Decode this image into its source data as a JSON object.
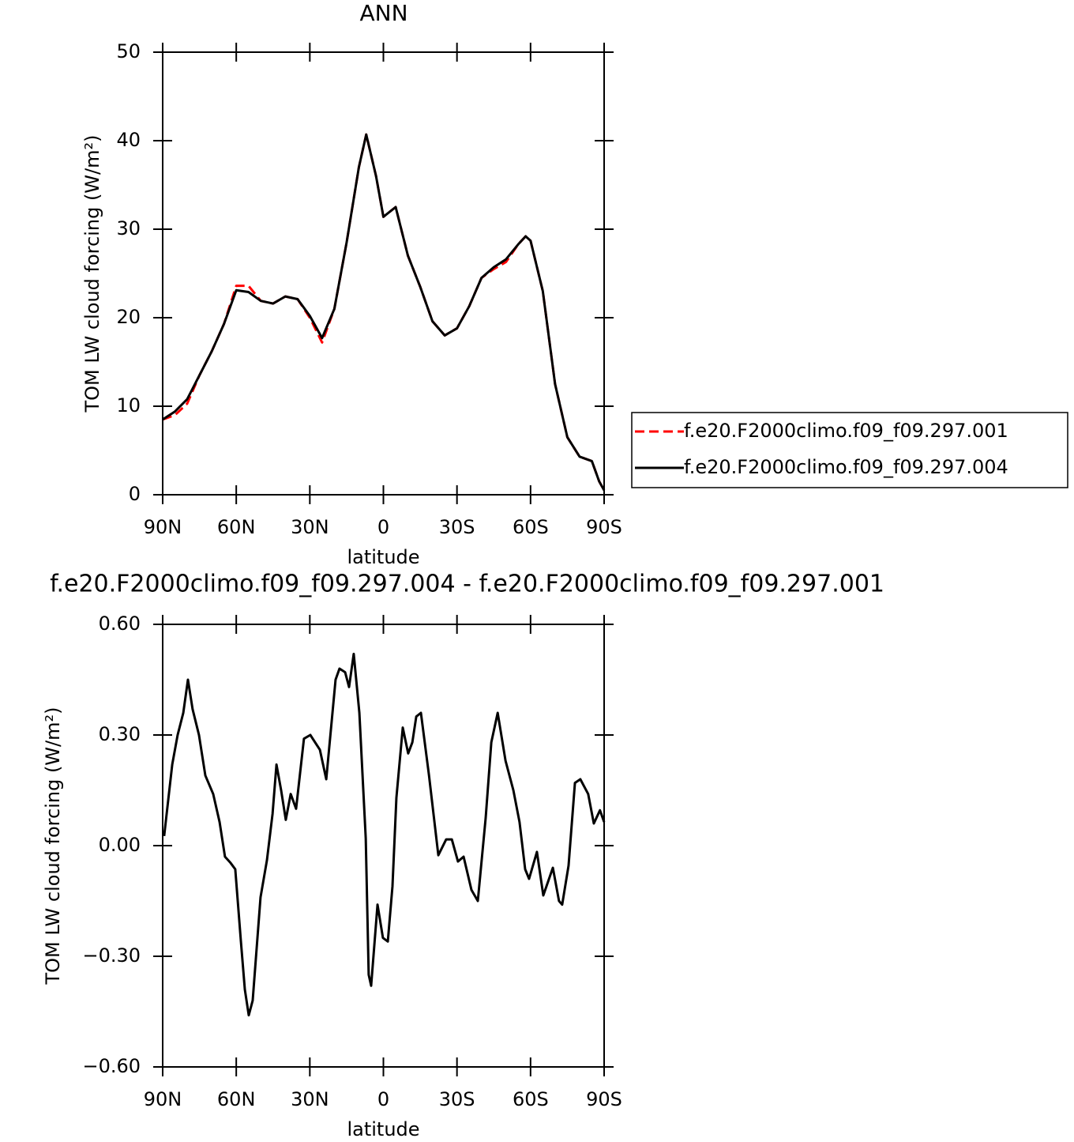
{
  "chart_data": [
    {
      "type": "line",
      "title": "ANN",
      "xlabel": "latitude",
      "ylabel": "TOM LW cloud forcing (W/m²)",
      "x": [
        90,
        85,
        80,
        75,
        70,
        65,
        60,
        55,
        50,
        45,
        40,
        35,
        30,
        25,
        20,
        15,
        10,
        7,
        3,
        0,
        -5,
        -10,
        -15,
        -20,
        -25,
        -30,
        -35,
        -40,
        -45,
        -50,
        -55,
        -58,
        -60,
        -65,
        -70,
        -75,
        -80,
        -85,
        -88,
        -90
      ],
      "series": [
        {
          "name": "f.e20.F2000climo.f09_f09.297.001",
          "color": "#ff0000",
          "line_style": "dashed",
          "values": [
            8.5,
            9.0,
            10.3,
            13.5,
            16.2,
            19.3,
            23.6,
            23.6,
            21.9,
            21.6,
            22.4,
            22.1,
            20.0,
            17.2,
            21,
            28.5,
            37,
            40.7,
            36,
            31.4,
            32.5,
            27,
            23.5,
            19.6,
            18,
            18.8,
            21.3,
            24.5,
            25.5,
            26.3,
            28.3,
            29.2,
            28.7,
            23,
            12.5,
            6.5,
            4.3,
            3.8,
            1.5,
            0.5
          ]
        },
        {
          "name": "f.e20.F2000climo.f09_f09.297.004",
          "color": "#000000",
          "line_style": "solid",
          "values": [
            8.5,
            9.4,
            10.8,
            13.5,
            16.2,
            19.3,
            23.1,
            22.9,
            21.9,
            21.6,
            22.4,
            22.1,
            20.2,
            17.7,
            21,
            28.5,
            37,
            40.7,
            36,
            31.4,
            32.5,
            27,
            23.5,
            19.6,
            18,
            18.8,
            21.3,
            24.5,
            25.7,
            26.6,
            28.3,
            29.2,
            28.7,
            23,
            12.5,
            6.5,
            4.3,
            3.8,
            1.5,
            0.5
          ]
        }
      ],
      "xlim": [
        90,
        -90
      ],
      "xticks": [
        {
          "value": 90,
          "label": "90N"
        },
        {
          "value": 60,
          "label": "60N"
        },
        {
          "value": 30,
          "label": "30N"
        },
        0,
        {
          "value": -30,
          "label": "30S"
        },
        {
          "value": -60,
          "label": "60S"
        },
        {
          "value": -90,
          "label": "90S"
        }
      ],
      "ylim": [
        0,
        50
      ],
      "yticks": [
        0,
        10,
        20,
        30,
        40,
        50
      ],
      "legend": "right"
    },
    {
      "type": "line",
      "title": "f.e20.F2000climo.f09_f09.297.004 - f.e20.F2000climo.f09_f09.297.001",
      "xlabel": "latitude",
      "ylabel": "TOM LW cloud forcing (W/m²)",
      "x": [
        89.4,
        86.1,
        83.9,
        81.6,
        79.7,
        77.8,
        75.2,
        72.6,
        69.4,
        66.8,
        64.6,
        62.3,
        60.4,
        58.1,
        56.5,
        54.9,
        53.3,
        50.1,
        47.5,
        45.2,
        43.6,
        41.7,
        39.8,
        37.8,
        35.6,
        32.4,
        29.8,
        25.9,
        23.3,
        19.5,
        17.9,
        15.6,
        14.0,
        12.1,
        9.8,
        7.2,
        6.0,
        5.0,
        2.4,
        0.2,
        -1.8,
        -3.7,
        -5.3,
        -7.9,
        -10.1,
        -11.8,
        -13.4,
        -15.3,
        -18.6,
        -22.4,
        -25.6,
        -27.9,
        -30.4,
        -32.7,
        -35.9,
        -38.5,
        -41.7,
        -44.0,
        -46.6,
        -49.8,
        -53.0,
        -55.5,
        -57.8,
        -59.4,
        -62.6,
        -65.2,
        -69.1,
        -71.6,
        -72.9,
        -75.5,
        -78.1,
        -80.3,
        -83.5,
        -85.8,
        -88.3,
        -90
      ],
      "values": [
        0.026,
        0.22,
        0.3,
        0.36,
        0.45,
        0.37,
        0.3,
        0.19,
        0.14,
        0.064,
        -0.03,
        -0.047,
        -0.064,
        -0.26,
        -0.39,
        -0.46,
        -0.42,
        -0.14,
        -0.04,
        0.086,
        0.22,
        0.15,
        0.07,
        0.14,
        0.1,
        0.29,
        0.3,
        0.26,
        0.18,
        0.45,
        0.48,
        0.47,
        0.43,
        0.52,
        0.36,
        0.02,
        -0.35,
        -0.38,
        -0.16,
        -0.25,
        -0.26,
        -0.11,
        0.13,
        0.32,
        0.25,
        0.28,
        0.35,
        0.36,
        0.19,
        -0.026,
        0.017,
        0.017,
        -0.043,
        -0.03,
        -0.12,
        -0.15,
        0.075,
        0.28,
        0.36,
        0.23,
        0.15,
        0.064,
        -0.064,
        -0.09,
        -0.017,
        -0.135,
        -0.06,
        -0.15,
        -0.16,
        -0.054,
        0.17,
        0.18,
        0.14,
        0.06,
        0.096,
        0.064
      ],
      "color": "#000000",
      "xlim": [
        90,
        -90
      ],
      "xticks": [
        {
          "value": 90,
          "label": "90N"
        },
        {
          "value": 60,
          "label": "60N"
        },
        {
          "value": 30,
          "label": "30N"
        },
        0,
        {
          "value": -30,
          "label": "30S"
        },
        {
          "value": -60,
          "label": "60S"
        },
        {
          "value": -90,
          "label": "90S"
        }
      ],
      "ylim": [
        -0.6,
        0.6
      ],
      "yticks": [
        {
          "value": -0.6,
          "label": "−0.60"
        },
        {
          "value": -0.3,
          "label": "−0.30"
        },
        {
          "value": 0,
          "label": "0.00"
        },
        {
          "value": 0.3,
          "label": "0.30"
        },
        {
          "value": 0.6,
          "label": "0.60"
        }
      ]
    }
  ]
}
